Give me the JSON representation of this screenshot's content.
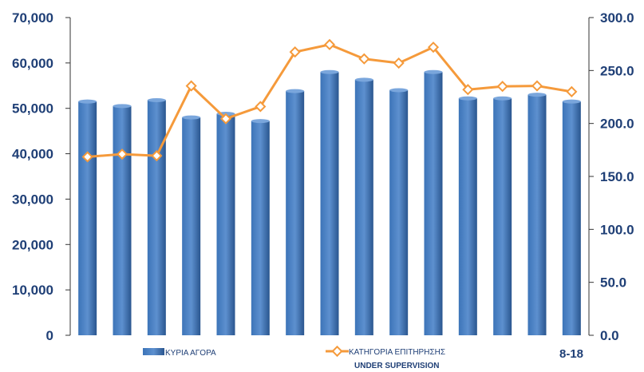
{
  "chart_data": {
    "type": "bar",
    "title": "",
    "xlabel": "",
    "ylabel": "",
    "ylim": [
      0,
      70000
    ],
    "y2lim": [
      0,
      300
    ],
    "grid": false,
    "legend_position": "bottom",
    "left_ticks": [
      "0",
      "10,000",
      "20,000",
      "30,000",
      "40,000",
      "50,000",
      "60,000",
      "70,000"
    ],
    "right_ticks": [
      "0.0",
      "50.0",
      "100.0",
      "150.0",
      "200.0",
      "250.0",
      "300.0"
    ],
    "series": [
      {
        "name": "ΚΥΡΙΑ ΑΓΟΡΑ",
        "type": "bar",
        "axis": "left",
        "color": "#2e5f9e",
        "values": [
          51500,
          50500,
          51800,
          48000,
          48800,
          47200,
          53800,
          58000,
          56300,
          54000,
          58000,
          52200,
          52200,
          53000,
          51500
        ]
      },
      {
        "name": "ΚΑΤΗΓΟΡΙΑ ΕΠΙΤΗΡΗΣΗΣ",
        "name_line2": "UNDER SUPERVISION",
        "type": "line",
        "axis": "right",
        "color": "#f59a3b",
        "values": [
          168.5,
          171,
          169.5,
          235.5,
          204.5,
          216,
          267.5,
          274.5,
          261,
          257,
          272,
          232,
          235,
          235.5,
          230
        ]
      }
    ],
    "corner_fragment": "8-18"
  }
}
